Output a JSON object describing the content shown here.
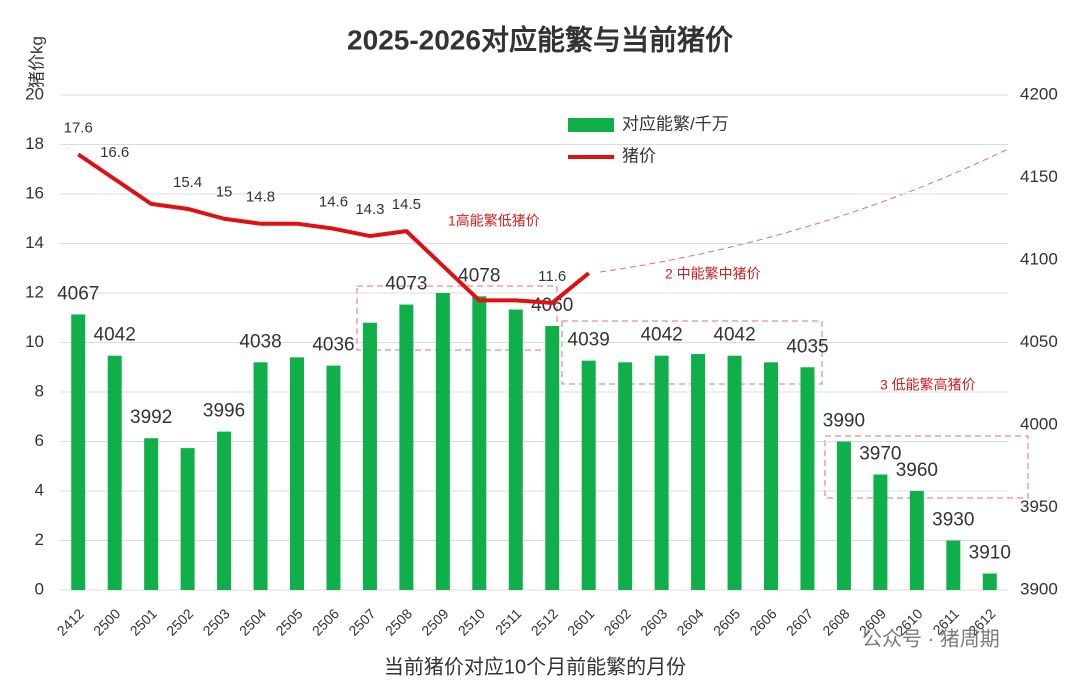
{
  "chart_data": {
    "type": "bar",
    "title": "2025-2026对应能繁与当前猪价",
    "y_label": "猪价kg",
    "x_label": "当前猪价对应10个月前能繁的月份",
    "categories": [
      "2412",
      "2500",
      "2501",
      "2502",
      "2503",
      "2504",
      "2505",
      "2506",
      "2507",
      "2508",
      "2509",
      "2510",
      "2511",
      "2512",
      "2601",
      "2602",
      "2603",
      "2604",
      "2605",
      "2606",
      "2607",
      "2608",
      "2609",
      "2610",
      "2611",
      "2612"
    ],
    "series": [
      {
        "name": "对应能繁/千万",
        "type": "bar",
        "axis": "y2",
        "color": "#0fb04a",
        "values": [
          4067,
          4042,
          3992,
          3986,
          3996,
          4038,
          4041,
          4036,
          4062,
          4073,
          4080,
          4078,
          4070,
          4060,
          4039,
          4038,
          4042,
          4043,
          4042,
          4038,
          4035,
          3990,
          3970,
          3960,
          3930,
          3910
        ],
        "value_labels": [
          "4067",
          "4042",
          "3992",
          null,
          "3996",
          "4038",
          null,
          "4036",
          null,
          "4073",
          null,
          "4078",
          null,
          "4060",
          "4039",
          null,
          "4042",
          null,
          "4042",
          null,
          "4035",
          "3990",
          "3970",
          "3960",
          "3930",
          "3910"
        ]
      },
      {
        "name": "猪价",
        "type": "line",
        "color": "#e01010",
        "values": [
          17.6,
          16.6,
          15.6,
          15.4,
          15,
          14.8,
          14.8,
          14.6,
          14.3,
          14.5,
          13.1,
          11.7,
          11.7,
          11.6,
          12.8,
          null,
          null,
          null,
          null,
          null,
          null,
          null,
          null,
          null,
          null,
          null
        ],
        "value_labels": [
          "17.6",
          "16.6",
          null,
          "15.4",
          "15",
          "14.8",
          null,
          "14.6",
          "14.3",
          "14.5",
          null,
          null,
          null,
          "11.6",
          null,
          null,
          null,
          null,
          null,
          null,
          null,
          null,
          null,
          null,
          null,
          null
        ]
      }
    ],
    "ylim": [
      0,
      20
    ],
    "yticks": [
      0,
      2,
      4,
      6,
      8,
      10,
      12,
      14,
      16,
      18,
      20
    ],
    "y2lim": [
      3900,
      4200
    ],
    "y2ticks": [
      3900,
      3950,
      4000,
      4050,
      4100,
      4150,
      4200
    ],
    "grid": true,
    "annotations": [
      "1高能繁低猪价",
      "2 中能繁中猪价",
      "3 低能繁高猪价"
    ],
    "watermark": "公众号 · 猪周期"
  }
}
